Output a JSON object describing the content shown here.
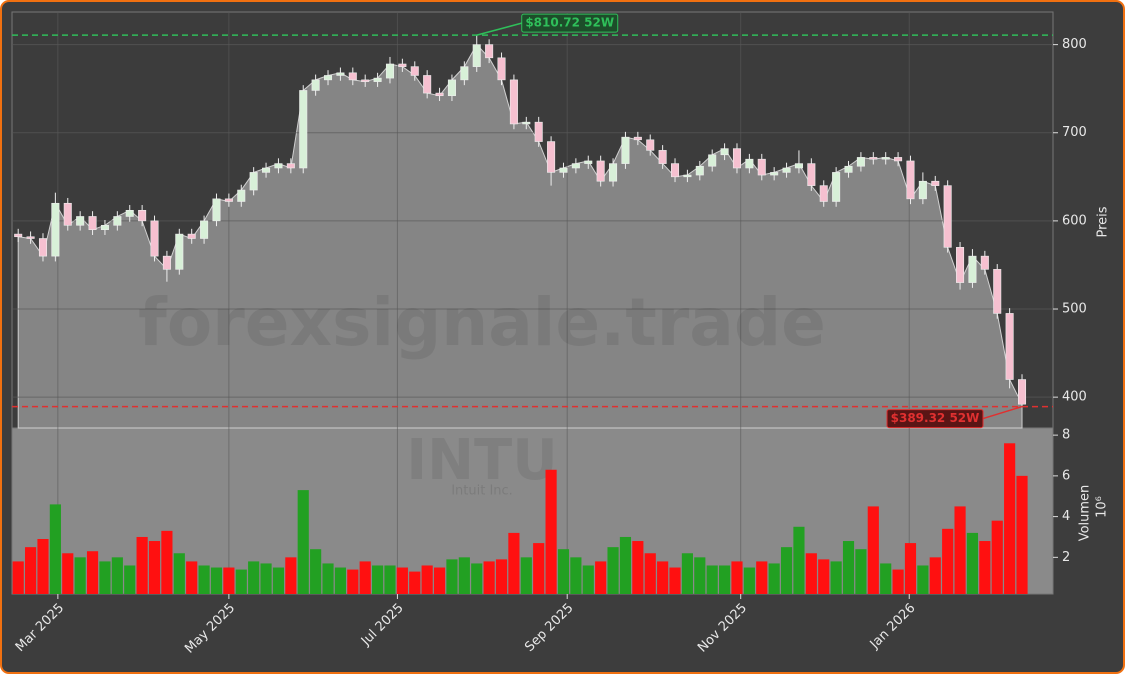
{
  "chart_data": {
    "type": "candlestick",
    "x": [
      0,
      1,
      2,
      3,
      4,
      5,
      6,
      7,
      8,
      9,
      10,
      11,
      12,
      13,
      14,
      15,
      16,
      17,
      18,
      19,
      20,
      21,
      22,
      23,
      24,
      25,
      26,
      27,
      28,
      29,
      30,
      31,
      32,
      33,
      34,
      35,
      36,
      37,
      38,
      39,
      40,
      41,
      42,
      43,
      44,
      45,
      46,
      47,
      48,
      49,
      50,
      51,
      52,
      53,
      54,
      55,
      56,
      57,
      58,
      59,
      60,
      61,
      62,
      63,
      64,
      65,
      66,
      67,
      68,
      69,
      70,
      71,
      72,
      73,
      74,
      75,
      76,
      77,
      78,
      79,
      80,
      81
    ],
    "open": [
      585,
      582,
      580,
      560,
      620,
      595,
      605,
      590,
      595,
      605,
      612,
      600,
      560,
      545,
      585,
      580,
      600,
      625,
      622,
      635,
      655,
      660,
      665,
      660,
      748,
      760,
      765,
      768,
      760,
      758,
      762,
      778,
      775,
      765,
      745,
      742,
      760,
      775,
      800,
      785,
      760,
      710,
      712,
      690,
      655,
      660,
      665,
      668,
      645,
      665,
      695,
      692,
      680,
      665,
      650,
      652,
      662,
      675,
      682,
      660,
      670,
      652,
      655,
      660,
      665,
      640,
      622,
      655,
      662,
      672,
      670,
      672,
      668,
      625,
      645,
      640,
      570,
      530,
      560,
      545,
      495,
      420
    ],
    "high": [
      591,
      588,
      586,
      632,
      626,
      611,
      611,
      601,
      611,
      618,
      618,
      606,
      566,
      591,
      591,
      606,
      631,
      631,
      641,
      661,
      666,
      671,
      671,
      754,
      766,
      771,
      774,
      774,
      766,
      768,
      786,
      784,
      781,
      771,
      751,
      766,
      781,
      810.72,
      806,
      791,
      766,
      718,
      718,
      696,
      666,
      671,
      674,
      674,
      671,
      701,
      701,
      698,
      686,
      671,
      658,
      668,
      681,
      688,
      688,
      676,
      676,
      661,
      666,
      680,
      671,
      646,
      661,
      668,
      678,
      678,
      678,
      678,
      674,
      655,
      651,
      646,
      576,
      568,
      566,
      551,
      501,
      426
    ],
    "low": [
      576,
      574,
      554,
      554,
      589,
      589,
      584,
      584,
      589,
      599,
      594,
      554,
      531,
      539,
      574,
      574,
      594,
      616,
      616,
      629,
      649,
      654,
      654,
      654,
      742,
      754,
      759,
      754,
      752,
      752,
      756,
      769,
      759,
      739,
      736,
      736,
      754,
      769,
      779,
      754,
      704,
      704,
      684,
      640,
      649,
      654,
      659,
      639,
      639,
      659,
      686,
      674,
      659,
      644,
      644,
      646,
      656,
      669,
      654,
      654,
      646,
      646,
      649,
      654,
      634,
      616,
      616,
      649,
      656,
      664,
      664,
      662,
      619,
      619,
      634,
      564,
      522,
      524,
      539,
      489,
      410,
      389.32
    ],
    "close": [
      582,
      580,
      560,
      620,
      595,
      605,
      590,
      595,
      605,
      612,
      600,
      560,
      545,
      585,
      580,
      600,
      625,
      622,
      635,
      655,
      660,
      665,
      660,
      748,
      760,
      765,
      768,
      760,
      758,
      762,
      778,
      775,
      765,
      745,
      742,
      760,
      775,
      800,
      785,
      760,
      710,
      712,
      690,
      655,
      660,
      665,
      668,
      645,
      665,
      695,
      692,
      680,
      665,
      650,
      652,
      662,
      675,
      682,
      660,
      670,
      652,
      655,
      660,
      665,
      640,
      622,
      655,
      662,
      672,
      670,
      672,
      668,
      625,
      645,
      640,
      570,
      530,
      560,
      545,
      495,
      420,
      392
    ],
    "volume": [
      1.8,
      2.5,
      2.9,
      4.6,
      2.2,
      2.0,
      2.3,
      1.8,
      2.0,
      1.6,
      3.0,
      2.8,
      3.3,
      2.2,
      1.8,
      1.6,
      1.5,
      1.5,
      1.4,
      1.8,
      1.7,
      1.5,
      2.0,
      5.3,
      2.4,
      1.7,
      1.5,
      1.4,
      1.8,
      1.6,
      1.6,
      1.5,
      1.3,
      1.6,
      1.5,
      1.9,
      2.0,
      1.7,
      1.8,
      1.9,
      3.2,
      2.0,
      2.7,
      6.3,
      2.4,
      2.0,
      1.6,
      1.8,
      2.5,
      3.0,
      2.8,
      2.2,
      1.8,
      1.5,
      2.2,
      2.0,
      1.6,
      1.6,
      1.8,
      1.5,
      1.8,
      1.7,
      2.5,
      3.5,
      2.2,
      1.9,
      1.8,
      2.8,
      2.4,
      4.5,
      1.7,
      1.4,
      2.7,
      1.6,
      2.0,
      3.4,
      4.5,
      3.2,
      2.8,
      3.8,
      7.6,
      6.0
    ],
    "up_color": "#22a022",
    "down_color": "#ff1010",
    "xlim": [
      -0.5,
      83.5
    ],
    "xticks": [
      {
        "value": 3.2,
        "label": "Mar 2025"
      },
      {
        "value": 17.0,
        "label": "May 2025"
      },
      {
        "value": 30.6,
        "label": "Jul 2025"
      },
      {
        "value": 44.3,
        "label": "Sep 2025"
      },
      {
        "value": 58.3,
        "label": "Nov 2025"
      },
      {
        "value": 71.9,
        "label": "Jan 2026"
      }
    ],
    "ylim": [
      365,
      837
    ],
    "yticks": [
      400,
      500,
      600,
      700,
      800
    ],
    "ylabel": "Preis",
    "y2lim": [
      0.2,
      8.35
    ],
    "y2ticks": [
      2,
      4,
      6,
      8
    ],
    "y2label": "Volumen",
    "y2_exponent": "10⁶",
    "grid": true,
    "annotations": [
      {
        "value": 810.72,
        "label": "$810.72 52W",
        "color": "#2fbf5a"
      },
      {
        "value": 389.32,
        "label": "$389.32 52W",
        "color": "#e03030"
      }
    ],
    "watermark": "forexsignale.trade",
    "symbol": "INTU",
    "company": "Intuit Inc."
  }
}
